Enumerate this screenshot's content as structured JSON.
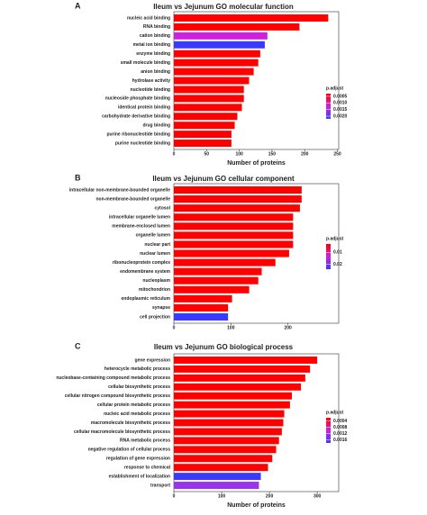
{
  "chart_data": [
    {
      "type": "bar",
      "label": "A",
      "title": "Ileum vs  Jejunum   GO molecular function",
      "categories": [
        "nucleic acid binding",
        "RNA binding",
        "cation binding",
        "metal ion binding",
        "enzyme binding",
        "small molecule binding",
        "anion binding",
        "hydrolase activity",
        "nucleotide binding",
        "nucleoside phosphate binding",
        "identical protein binding",
        "carbohydrate derivative binding",
        "drug binding",
        "purine ribonucleotide binding",
        "purine nucleotide binding"
      ],
      "values": [
        236,
        192,
        143,
        139,
        132,
        129,
        122,
        115,
        107,
        107,
        104,
        97,
        93,
        88,
        88
      ],
      "colors": [
        "#ff0000",
        "#ff0000",
        "#cc22dd",
        "#3a3aff",
        "#ff0000",
        "#ff0000",
        "#ff0000",
        "#ff0000",
        "#ff0000",
        "#ff0000",
        "#ff0000",
        "#ff0000",
        "#ff0000",
        "#ff0000",
        "#ff0000"
      ],
      "xlim": [
        0,
        252
      ],
      "xticks": [
        0,
        50,
        100,
        150,
        200,
        250
      ],
      "xlabel": "Number of proteins",
      "legend_title": "p.adjust",
      "clim": [
        0.0003,
        0.0022
      ],
      "cticks": [
        0.0005,
        {
          "value": 0.001,
          "label": "0.0010"
        },
        0.0015,
        {
          "value": 0.002,
          "label": "0.0020"
        }
      ]
    },
    {
      "type": "bar",
      "label": "B",
      "title": "Ileum vs  Jejunum   GO cellular component",
      "categories": [
        "intracellular non-membrane-bounded organelle",
        "non-membrane-bounded organelle",
        "cytosol",
        "intracellular organelle lumen",
        "membrane-enclosed lumen",
        "organelle lumen",
        "nuclear part",
        "nuclear lumen",
        "ribonucleoprotein complex",
        "endomembrane system",
        "nucleoplasm",
        "mitochondrion",
        "endoplasmic reticulum",
        "synapse",
        "cell projection"
      ],
      "values": [
        224,
        224,
        221,
        209,
        209,
        209,
        209,
        202,
        178,
        154,
        148,
        132,
        102,
        95,
        95
      ],
      "colors": [
        "#ff0000",
        "#ff0000",
        "#ff0000",
        "#ff0000",
        "#ff0000",
        "#ff0000",
        "#ff0000",
        "#ff0000",
        "#ff0000",
        "#ff0000",
        "#ff0000",
        "#ff0000",
        "#ff0000",
        "#ff0000",
        "#3a3aff"
      ],
      "xlim": [
        0,
        289
      ],
      "xticks": [
        0,
        100,
        200
      ],
      "legend_title": "p.adjust",
      "clim": [
        0.003,
        0.024
      ],
      "cticks": [
        0.01,
        0.02
      ]
    },
    {
      "type": "bar",
      "label": "C",
      "title": "Ileum vs  Jejunum   GO biological process",
      "categories": [
        "gene expression",
        "heterocycle metabolic process",
        "nucleobase-containing compound metabolic process",
        "cellular biosynthetic process",
        "cellular nitrogen compound biosynthetic process",
        "cellular protein metabolic process",
        "nucleic acid metabolic process",
        "macromolecule biosynthetic process",
        "cellular macromolecule biosynthetic process",
        "RNA metabolic process",
        "negative regulation of cellular process",
        "regulation of gene expression",
        "response to chemical",
        "establishment of localization",
        "transport"
      ],
      "values": [
        300,
        285,
        275,
        266,
        247,
        243,
        231,
        229,
        226,
        220,
        214,
        206,
        197,
        182,
        178
      ],
      "colors": [
        "#ff0000",
        "#ff0000",
        "#ff0000",
        "#ff0000",
        "#ff0000",
        "#ff0000",
        "#ff0000",
        "#ff0000",
        "#ff0000",
        "#ff0000",
        "#ff0000",
        "#ff0000",
        "#ff0000",
        "#3a3aff",
        "#9933ee"
      ],
      "xlim": [
        0,
        345
      ],
      "xticks": [
        0,
        100,
        200,
        300
      ],
      "xlabel": "Number of proteins",
      "legend_title": "p.adjust",
      "clim": [
        0.0002,
        0.0018
      ],
      "cticks": [
        0.0004,
        0.0008,
        0.0012,
        0.0016
      ]
    }
  ]
}
